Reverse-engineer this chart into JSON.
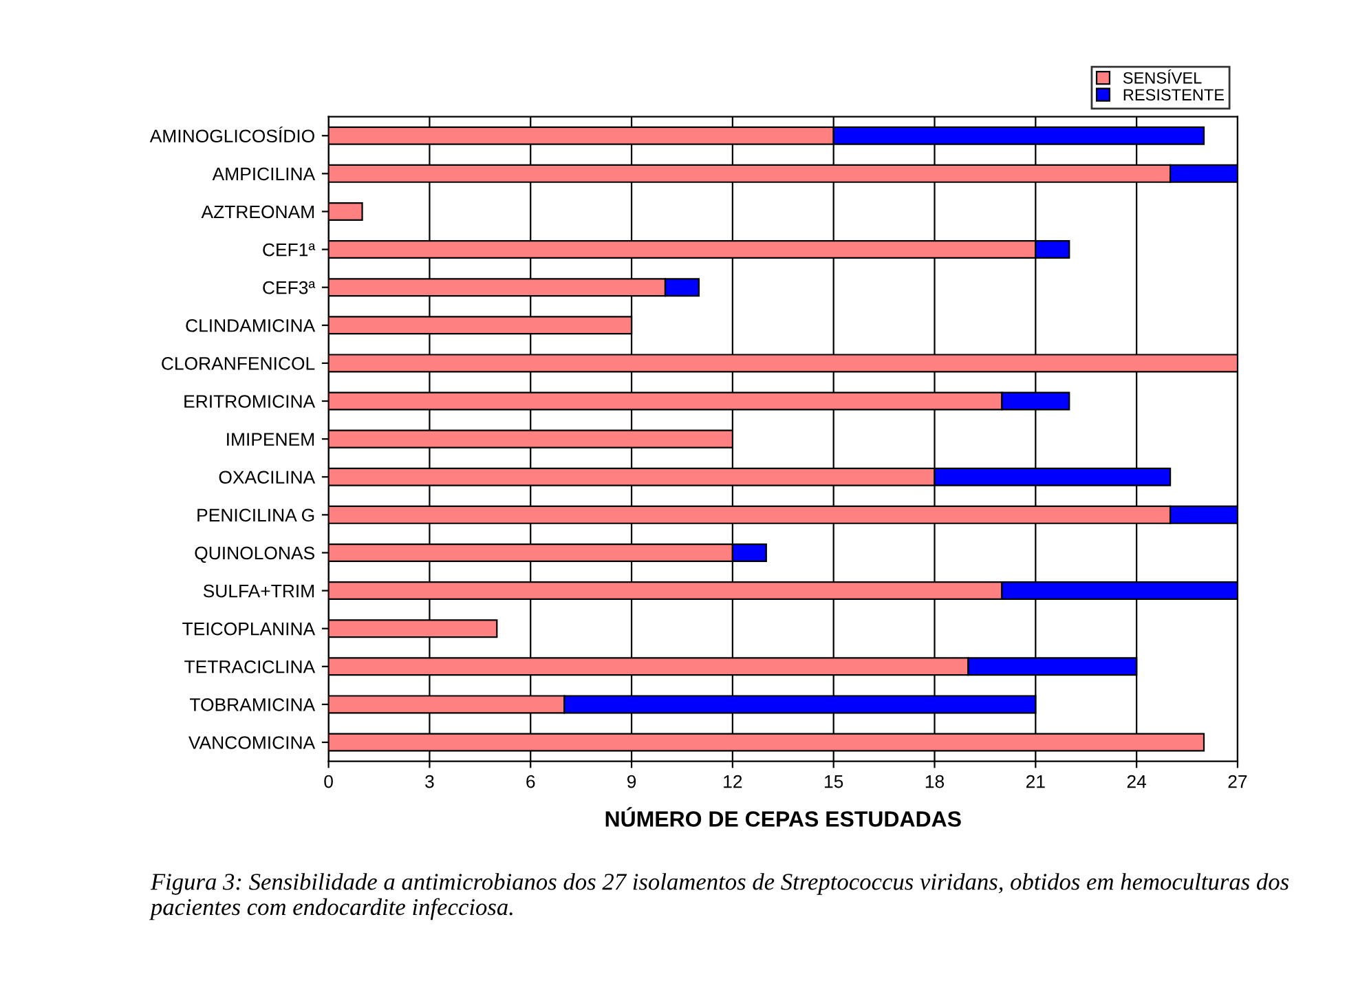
{
  "chart_data": {
    "type": "bar",
    "orientation": "horizontal",
    "stacked": true,
    "xlabel": "NÚMERO DE CEPAS ESTUDADAS",
    "categories": [
      "AMINOGLICOSÍDIO",
      "AMPICILINA",
      "AZTREONAM",
      "CEF1ª",
      "CEF3ª",
      "CLINDAMICINA",
      "CLORANFENICOL",
      "ERITROMICINA",
      "IMIPENEM",
      "OXACILINA",
      "PENICILINA G",
      "QUINOLONAS",
      "SULFA+TRIM",
      "TEICOPLANINA",
      "TETRACICLINA",
      "TOBRAMICINA",
      "VANCOMICINA"
    ],
    "series": [
      {
        "name": "SENSÍVEL",
        "color": "#ff8080",
        "values": [
          15,
          25,
          1,
          21,
          10,
          9,
          27,
          20,
          12,
          18,
          25,
          12,
          20,
          5,
          19,
          7,
          26
        ]
      },
      {
        "name": "RESISTENTE",
        "color": "#0000ff",
        "values": [
          11,
          2,
          null,
          1,
          1,
          null,
          null,
          2,
          null,
          7,
          2,
          1,
          7,
          null,
          5,
          14,
          null
        ]
      }
    ],
    "xlim": [
      0,
      27
    ],
    "xticks": [
      0,
      3,
      6,
      9,
      12,
      15,
      18,
      21,
      24,
      27
    ],
    "grid": "x",
    "legend": "top right",
    "annotations": [
      "Figura 3: Sensibilidade a antimicrobianos dos 27 isolamentos de Streptococcus viridans, obtidos em hemoculturas dos pacientes com endocardite infecciosa."
    ]
  }
}
